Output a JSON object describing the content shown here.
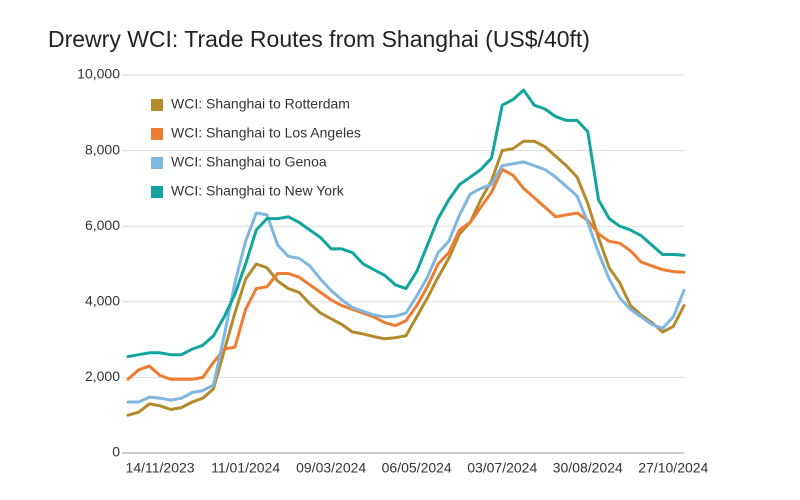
{
  "chart_data": {
    "type": "line",
    "title": "Drewry WCI: Trade Routes from Shanghai (US$/40ft)",
    "categories": [
      null,
      null,
      null,
      "14/11/2023",
      null,
      null,
      null,
      null,
      null,
      null,
      null,
      "11/01/2024",
      null,
      null,
      null,
      null,
      null,
      null,
      null,
      "09/03/2024",
      null,
      null,
      null,
      null,
      null,
      null,
      null,
      "06/05/2024",
      null,
      null,
      null,
      null,
      null,
      null,
      null,
      "03/07/2024",
      null,
      null,
      null,
      null,
      null,
      null,
      null,
      "30/08/2024",
      null,
      null,
      null,
      null,
      null,
      null,
      null,
      "27/10/2024",
      null
    ],
    "series": [
      {
        "name": "WCI: Shanghai to Rotterdam",
        "color": "#b38b2b",
        "values": [
          1000,
          1080,
          1300,
          1250,
          1150,
          1200,
          1350,
          1450,
          1700,
          2700,
          3700,
          4600,
          5000,
          4900,
          4550,
          4350,
          4250,
          3950,
          3700,
          3550,
          3400,
          3200,
          3150,
          3080,
          3020,
          3050,
          3100,
          3600,
          4100,
          4650,
          5150,
          5800,
          6100,
          6700,
          7200,
          8000,
          8050,
          8250,
          8250,
          8100,
          7850,
          7600,
          7300,
          6600,
          5700,
          4900,
          4500,
          3900,
          3650,
          3450,
          3200,
          3350,
          3900
        ]
      },
      {
        "name": "WCI: Shanghai to Los Angeles",
        "color": "#ee7d31",
        "values": [
          1950,
          2200,
          2300,
          2050,
          1950,
          1950,
          1950,
          2000,
          2400,
          2750,
          2800,
          3800,
          4350,
          4400,
          4750,
          4750,
          4650,
          4450,
          4250,
          4050,
          3900,
          3800,
          3700,
          3600,
          3450,
          3370,
          3500,
          3900,
          4400,
          5000,
          5300,
          5900,
          6100,
          6500,
          6900,
          7500,
          7350,
          7000,
          6750,
          6500,
          6250,
          6300,
          6350,
          6150,
          5800,
          5600,
          5550,
          5350,
          5050,
          4950,
          4850,
          4800,
          4780
        ]
      },
      {
        "name": "WCI: Shanghai to Genoa",
        "color": "#7fb7e1",
        "values": [
          1350,
          1350,
          1480,
          1450,
          1400,
          1450,
          1600,
          1650,
          1800,
          3100,
          4500,
          5600,
          6350,
          6300,
          5500,
          5200,
          5150,
          4950,
          4600,
          4300,
          4050,
          3850,
          3750,
          3650,
          3600,
          3620,
          3700,
          4150,
          4650,
          5300,
          5600,
          6300,
          6850,
          7000,
          7100,
          7600,
          7650,
          7700,
          7600,
          7500,
          7300,
          7050,
          6800,
          6100,
          5300,
          4600,
          4100,
          3800,
          3600,
          3400,
          3300,
          3600,
          4300
        ]
      },
      {
        "name": "WCI: Shanghai to New York",
        "color": "#12a49e",
        "values": [
          2550,
          2600,
          2650,
          2650,
          2600,
          2600,
          2750,
          2850,
          3100,
          3600,
          4200,
          5000,
          5900,
          6200,
          6200,
          6250,
          6100,
          5900,
          5700,
          5400,
          5400,
          5300,
          5000,
          4850,
          4700,
          4450,
          4350,
          4800,
          5500,
          6200,
          6700,
          7100,
          7300,
          7500,
          7800,
          9200,
          9350,
          9600,
          9200,
          9100,
          8900,
          8800,
          8800,
          8500,
          6700,
          6200,
          6000,
          5900,
          5750,
          5500,
          5250,
          5250,
          5230
        ]
      }
    ],
    "ylim": [
      0,
      10000
    ],
    "yticks": [
      0,
      {
        "value": 2000,
        "label": "2,000"
      },
      {
        "value": 4000,
        "label": "4,000"
      },
      {
        "value": 6000,
        "label": "6,000"
      },
      {
        "value": 8000,
        "label": "8,000"
      },
      {
        "value": 10000,
        "label": "10,000"
      }
    ],
    "grid": true,
    "legend": "upper-left"
  }
}
